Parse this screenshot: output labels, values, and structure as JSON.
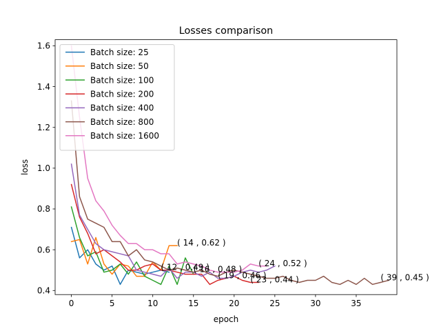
{
  "chart_data": {
    "type": "line",
    "title": "Losses comparison",
    "xlabel": "epoch",
    "ylabel": "loss",
    "xlim": [
      -2,
      40
    ],
    "ylim": [
      0.38,
      1.63
    ],
    "xticks": [
      0,
      5,
      10,
      15,
      20,
      25,
      30,
      35
    ],
    "yticks": [
      0.4,
      0.6,
      0.8,
      1.0,
      1.2,
      1.4,
      1.6
    ],
    "xtick_labels": [
      "0",
      "5",
      "10",
      "15",
      "20",
      "25",
      "30",
      "35"
    ],
    "ytick_labels": [
      "0.4",
      "0.6",
      "0.8",
      "1.0",
      "1.2",
      "1.4",
      "1.6"
    ],
    "grid": false,
    "legend_position": "upper-left",
    "series": [
      {
        "name": "Batch size: 25",
        "color": "#1f77b4",
        "values": [
          0.71,
          0.56,
          0.6,
          0.53,
          0.5,
          0.52,
          0.43,
          0.5,
          0.49,
          0.48,
          0.49,
          0.5,
          0.49
        ]
      },
      {
        "name": "Batch size: 50",
        "color": "#ff7f0e",
        "values": [
          0.64,
          0.65,
          0.53,
          0.66,
          0.53,
          0.48,
          0.53,
          0.52,
          0.47,
          0.47,
          0.54,
          0.5,
          0.62,
          0.62
        ]
      },
      {
        "name": "Batch size: 100",
        "color": "#2ca02c",
        "values": [
          0.81,
          0.66,
          0.57,
          0.59,
          0.49,
          0.5,
          0.53,
          0.48,
          0.54,
          0.47,
          0.45,
          0.43,
          0.52,
          0.43,
          0.56,
          0.48
        ]
      },
      {
        "name": "Batch size: 200",
        "color": "#d62728",
        "values": [
          0.92,
          0.76,
          0.68,
          0.58,
          0.6,
          0.57,
          0.54,
          0.5,
          0.5,
          0.52,
          0.53,
          0.5,
          0.5,
          0.49,
          0.48,
          0.48,
          0.48,
          0.43,
          0.45,
          0.46,
          0.47,
          0.45,
          0.44,
          0.44
        ]
      },
      {
        "name": "Batch size: 400",
        "color": "#9467bd",
        "values": [
          1.02,
          0.77,
          0.7,
          0.63,
          0.6,
          0.59,
          0.58,
          0.57,
          0.5,
          0.49,
          0.48,
          0.47,
          0.51,
          0.46,
          0.49,
          0.49,
          0.47,
          0.49,
          0.46,
          0.46,
          0.47,
          0.49,
          0.5,
          0.49,
          0.5,
          0.52
        ]
      },
      {
        "name": "Batch size: 800",
        "color": "#8c564b",
        "values": [
          1.33,
          0.86,
          0.75,
          0.73,
          0.71,
          0.64,
          0.64,
          0.57,
          0.6,
          0.55,
          0.54,
          0.52,
          0.5,
          0.51,
          0.5,
          0.49,
          0.5,
          0.48,
          0.47,
          0.49,
          0.5,
          0.49,
          0.48,
          0.47,
          0.46,
          0.46,
          0.47,
          0.45,
          0.44,
          0.45,
          0.45,
          0.47,
          0.44,
          0.43,
          0.45,
          0.43,
          0.46,
          0.43,
          0.44,
          0.45
        ]
      },
      {
        "name": "Batch size: 1600",
        "color": "#e377c2",
        "values": [
          1.6,
          1.25,
          0.95,
          0.84,
          0.79,
          0.72,
          0.67,
          0.63,
          0.63,
          0.6,
          0.6,
          0.58,
          0.58,
          0.53,
          0.54,
          0.53,
          0.52,
          0.5,
          0.49,
          0.49,
          0.49,
          0.5,
          0.53,
          0.52,
          0.52
        ]
      }
    ],
    "annotations": [
      {
        "text": "( 14 , 0.62 )",
        "x": 13.0,
        "y": 0.62
      },
      {
        "text": "( 12 , 0.49 )",
        "x": 11.0,
        "y": 0.5
      },
      {
        "text": "( 16 , 0.48 )",
        "x": 15.0,
        "y": 0.49
      },
      {
        "text": "( 19 , 0.46 )",
        "x": 18.0,
        "y": 0.46
      },
      {
        "text": "( 23 , 0.44 )",
        "x": 22.0,
        "y": 0.44
      },
      {
        "text": "( 24 , 0.52 )",
        "x": 23.0,
        "y": 0.52
      },
      {
        "text": "( 39 , 0.45 )",
        "x": 38.0,
        "y": 0.45
      }
    ]
  }
}
